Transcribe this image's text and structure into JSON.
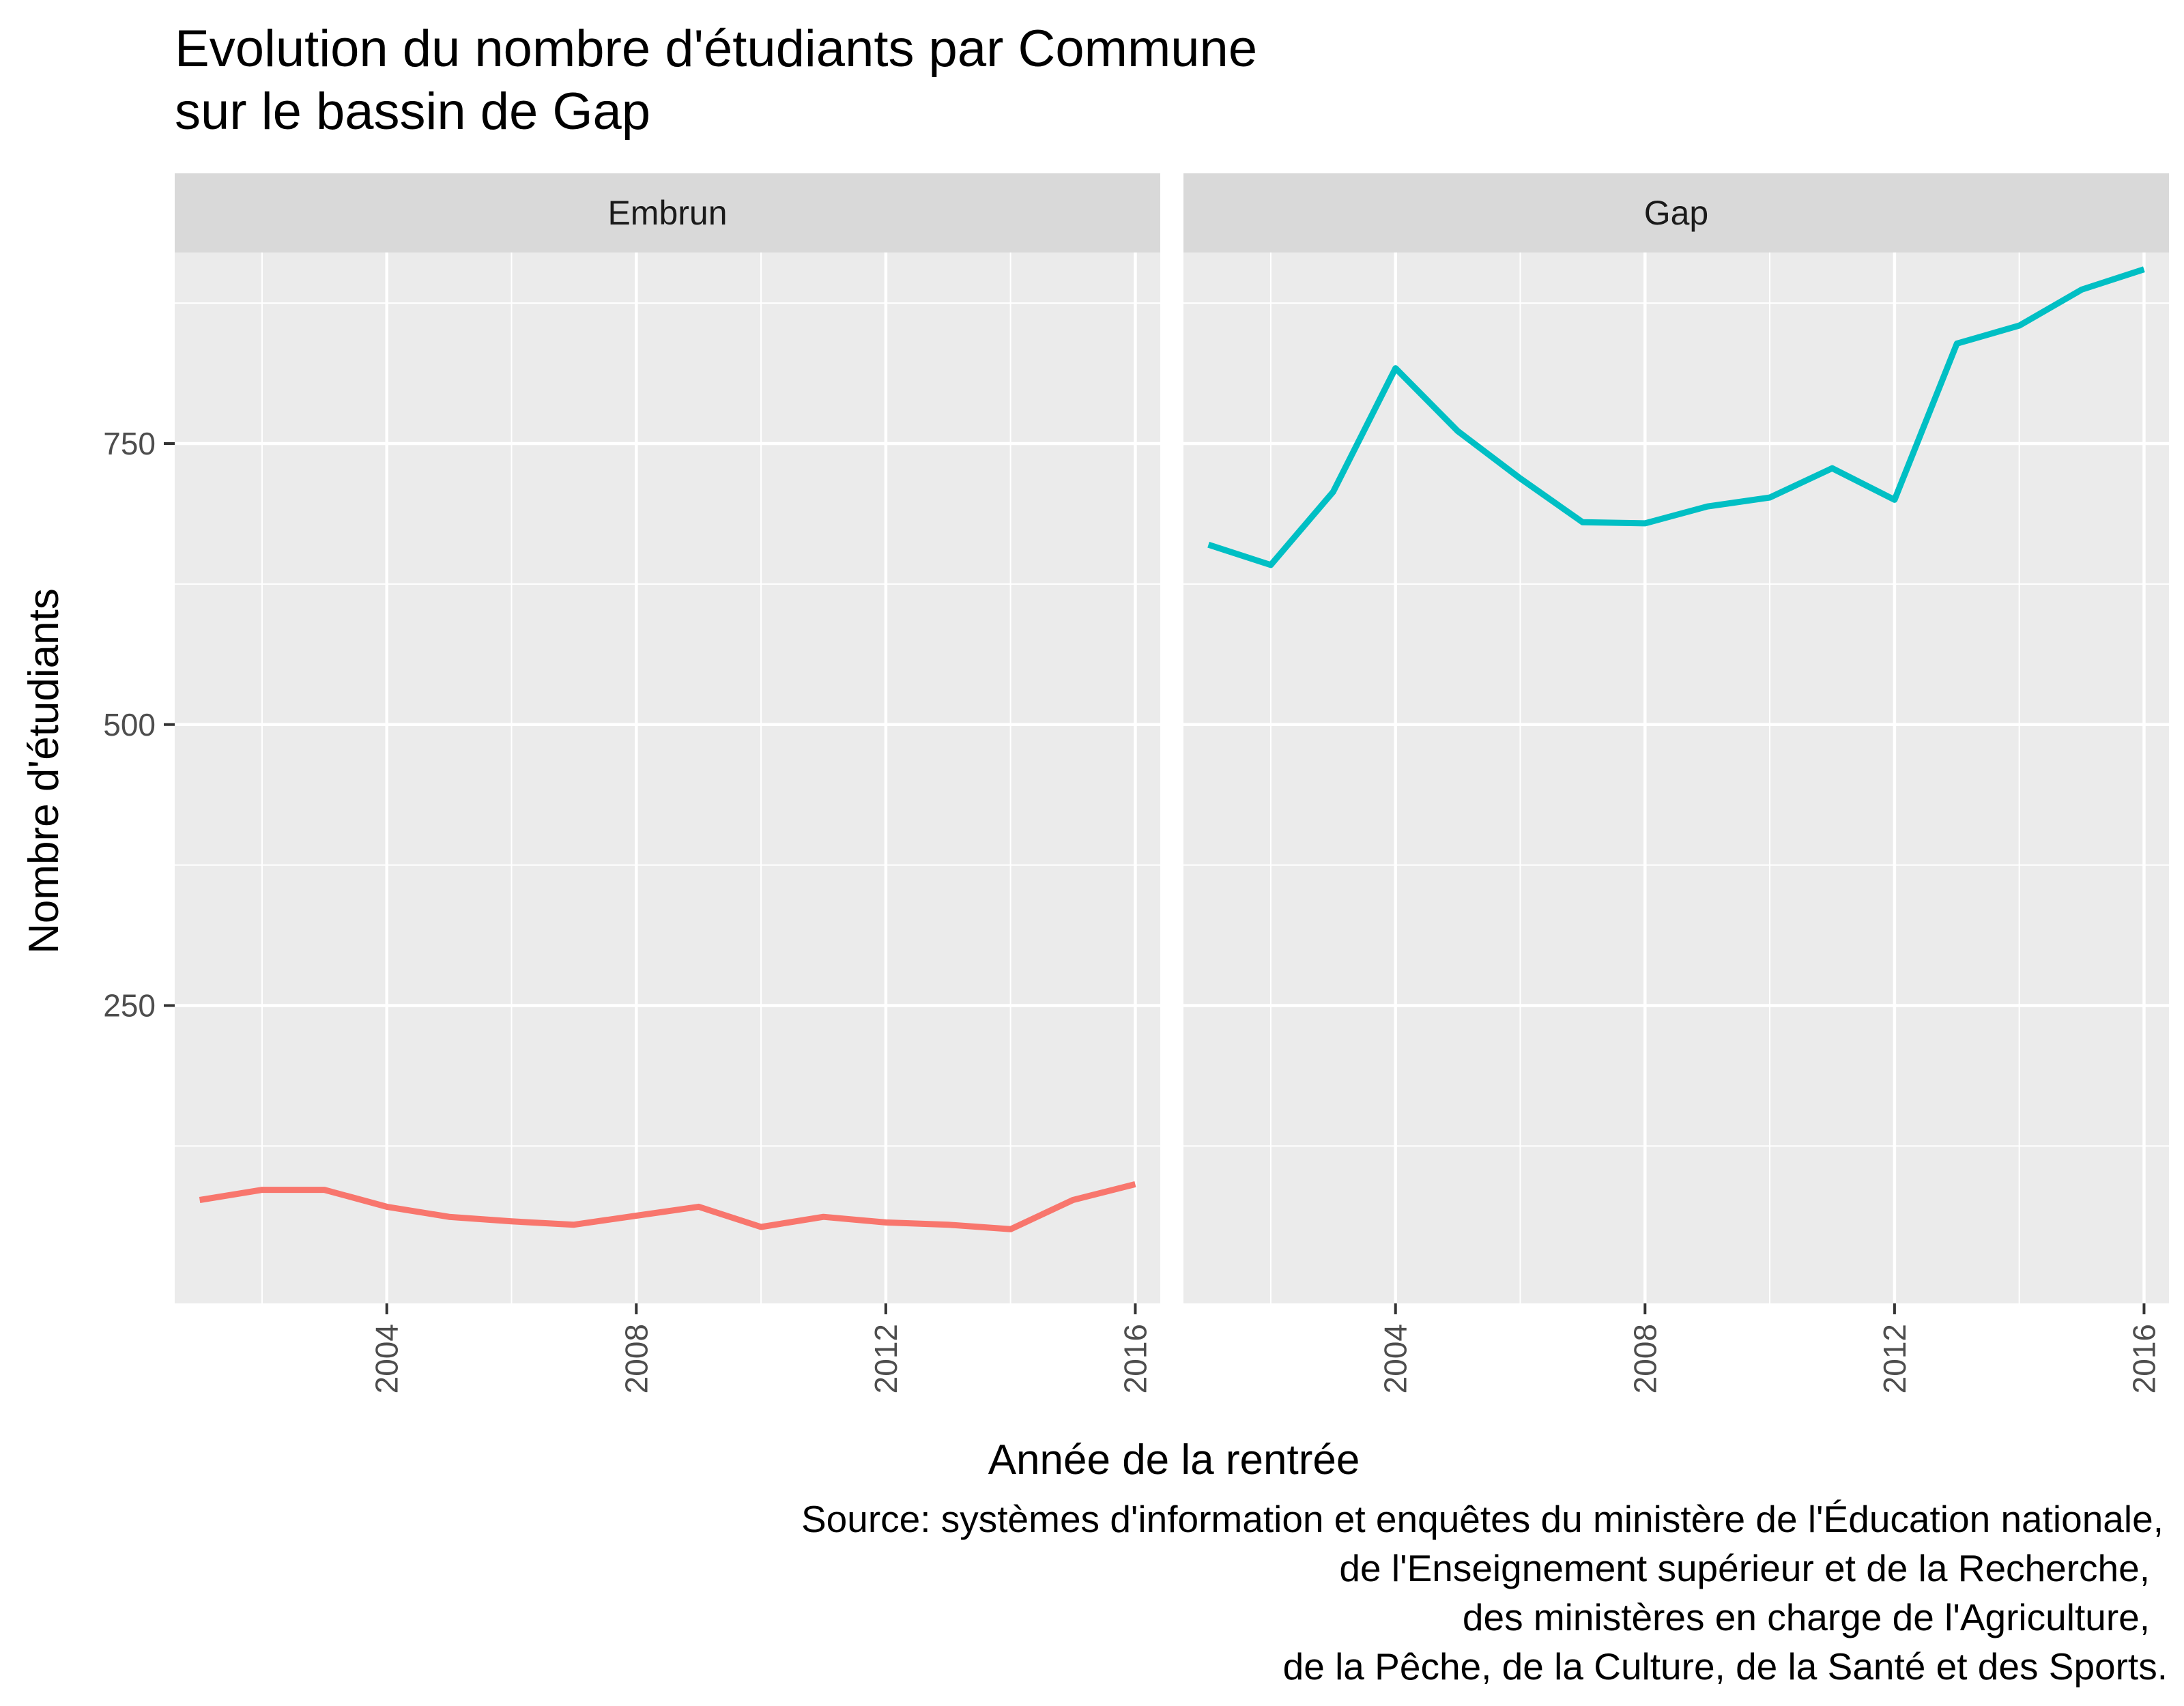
{
  "chart_data": {
    "type": "line",
    "title_lines": [
      "Evolution du nombre d'étudiants par Commune",
      "sur  le bassin de Gap"
    ],
    "xlabel": "Année de la rentrée",
    "ylabel": "Nombre d'étudiants",
    "caption_lines": [
      "Source: systèmes d'information et enquêtes du ministère de l'Éducation nationale,",
      "de l'Enseignement supérieur et de la Recherche,",
      "des ministères en charge de l'Agriculture,",
      "de la Pêche, de la Culture, de la Santé et des Sports."
    ],
    "xlim": [
      2000.6,
      2016.4
    ],
    "ylim": [
      -15,
      920
    ],
    "x_ticks": [
      2004,
      2008,
      2012,
      2016
    ],
    "y_ticks": [
      250,
      500,
      750
    ],
    "x": [
      2001,
      2002,
      2003,
      2004,
      2005,
      2006,
      2007,
      2008,
      2009,
      2010,
      2011,
      2012,
      2013,
      2014,
      2015,
      2016
    ],
    "grid": true,
    "legend": "none",
    "facets": [
      {
        "label": "Embrun",
        "color": "#F8766D",
        "values": [
          77,
          86,
          86,
          71,
          62,
          58,
          55,
          63,
          71,
          53,
          62,
          57,
          55,
          51,
          77,
          91
        ]
      },
      {
        "label": "Gap",
        "color": "#00BFC4",
        "values": [
          660,
          642,
          707,
          817,
          761,
          719,
          680,
          679,
          694,
          702,
          728,
          700,
          839,
          855,
          887,
          905
        ]
      }
    ]
  }
}
